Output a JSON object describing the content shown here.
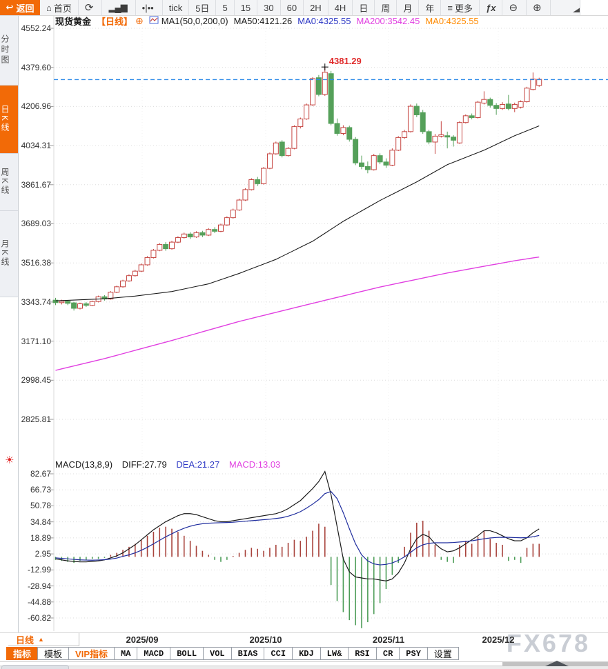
{
  "toolbar": {
    "back_label": "返回",
    "buttons": [
      {
        "id": "home",
        "label": "首页",
        "icon": "home-icon"
      },
      {
        "id": "refresh",
        "label": "",
        "icon": "refresh-icon"
      },
      {
        "id": "chart-type",
        "label": "",
        "icon": "bar-chart-icon"
      },
      {
        "id": "volume",
        "label": "",
        "icon": "volume-sliders-icon"
      },
      {
        "id": "tick",
        "label": "tick"
      },
      {
        "id": "5d",
        "label": "5日"
      },
      {
        "id": "5min",
        "label": "5"
      },
      {
        "id": "15min",
        "label": "15"
      },
      {
        "id": "30min",
        "label": "30"
      },
      {
        "id": "60min",
        "label": "60"
      },
      {
        "id": "2h",
        "label": "2H"
      },
      {
        "id": "4h",
        "label": "4H"
      },
      {
        "id": "day",
        "label": "日"
      },
      {
        "id": "week",
        "label": "周"
      },
      {
        "id": "month",
        "label": "月"
      },
      {
        "id": "year",
        "label": "年"
      },
      {
        "id": "more",
        "label": "更多",
        "icon": "menu-icon"
      },
      {
        "id": "fx",
        "label": "ƒx"
      },
      {
        "id": "zoom-out",
        "label": "",
        "icon": "zoom-out-icon"
      },
      {
        "id": "zoom-in",
        "label": "",
        "icon": "zoom-in-icon"
      },
      {
        "id": "draw",
        "label": "",
        "icon": "draw-tool-icon"
      }
    ]
  },
  "sidebar": {
    "items": [
      {
        "label": "分时图",
        "active": false
      },
      {
        "label": "日K线",
        "active": true
      },
      {
        "label": "周K线",
        "active": false
      },
      {
        "label": "月K线",
        "active": false
      }
    ]
  },
  "chart_header": {
    "symbol": "现货黄金",
    "period": "【日线】",
    "add_icon": "⊕",
    "ma_settings": "MA1(50,0,200,0)",
    "ma50": "MA50:4121.26",
    "ma0_blue": "MA0:4325.55",
    "ma200": "MA200:3542.45",
    "ma0_orange": "MA0:4325.55"
  },
  "macd_header": {
    "title": "MACD(13,8,9)",
    "diff": "DIFF:27.79",
    "dea": "DEA:21.27",
    "macd": "MACD:13.03"
  },
  "annotation": {
    "peak_label": "4381.29"
  },
  "x_axis": {
    "period_label": "日线",
    "arrow": "▲",
    "labels": [
      "2025/09",
      "2025/10",
      "2025/11",
      "2025/12"
    ]
  },
  "footer_tabs": [
    {
      "label": "指标",
      "active": true
    },
    {
      "label": "模板"
    },
    {
      "label": "VIP指标",
      "vip": true
    },
    {
      "label": "MA",
      "mono": true
    },
    {
      "label": "MACD",
      "mono": true
    },
    {
      "label": "BOLL",
      "mono": true
    },
    {
      "label": "VOL",
      "mono": true
    },
    {
      "label": "BIAS",
      "mono": true
    },
    {
      "label": "CCI",
      "mono": true
    },
    {
      "label": "KDJ",
      "mono": true
    },
    {
      "label": "LW&",
      "mono": true
    },
    {
      "label": "RSI",
      "mono": true
    },
    {
      "label": "CR",
      "mono": true
    },
    {
      "label": "PSY",
      "mono": true
    },
    {
      "label": "设置"
    }
  ],
  "watermark": "FX678",
  "colors": {
    "accent_orange": "#f26a07",
    "up_red": "#c5433f",
    "down_green": "#55a05a",
    "macd_up": "#a8433c",
    "macd_down": "#4d9d58",
    "line_black": "#1a1a1a",
    "line_blue": "#1f2d9e",
    "line_magenta": "#e13fe1",
    "dashed_blue": "#2f8ce8",
    "annotation_red": "#e02a2a"
  },
  "chart_data": {
    "type": "candlestick",
    "symbol": "现货黄金",
    "period": "日线",
    "title": "现货黄金【日线】",
    "price_axis_ticks": [
      4552.24,
      4379.6,
      4206.96,
      4034.31,
      3861.67,
      3689.03,
      3516.38,
      3343.74,
      3171.1,
      2998.45,
      2825.81
    ],
    "macd_axis_ticks": [
      82.67,
      66.73,
      50.78,
      34.84,
      18.89,
      2.95,
      -12.99,
      -28.94,
      -44.88,
      -60.82
    ],
    "x_labels": [
      "2025/09",
      "2025/10",
      "2025/11",
      "2025/12"
    ],
    "current_price": 4325.55,
    "peak_price": 4381.29,
    "peak_candle_index": 44,
    "ma50_last": 4121.26,
    "ma200_last": 3542.45,
    "candles_ohlc": [
      [
        3352,
        3362,
        3330,
        3341
      ],
      [
        3341,
        3354,
        3333,
        3347
      ],
      [
        3347,
        3352,
        3330,
        3338
      ],
      [
        3340,
        3344,
        3306,
        3316
      ],
      [
        3316,
        3341,
        3311,
        3336
      ],
      [
        3336,
        3344,
        3322,
        3329
      ],
      [
        3329,
        3350,
        3326,
        3346
      ],
      [
        3346,
        3372,
        3342,
        3367
      ],
      [
        3367,
        3374,
        3350,
        3357
      ],
      [
        3357,
        3392,
        3354,
        3387
      ],
      [
        3387,
        3416,
        3383,
        3411
      ],
      [
        3411,
        3442,
        3407,
        3437
      ],
      [
        3437,
        3466,
        3433,
        3460
      ],
      [
        3460,
        3486,
        3456,
        3480
      ],
      [
        3480,
        3514,
        3476,
        3508
      ],
      [
        3508,
        3546,
        3504,
        3540
      ],
      [
        3540,
        3578,
        3536,
        3572
      ],
      [
        3572,
        3604,
        3568,
        3598
      ],
      [
        3598,
        3608,
        3570,
        3579
      ],
      [
        3579,
        3614,
        3575,
        3608
      ],
      [
        3608,
        3634,
        3604,
        3628
      ],
      [
        3628,
        3650,
        3624,
        3644
      ],
      [
        3644,
        3652,
        3622,
        3631
      ],
      [
        3631,
        3656,
        3627,
        3650
      ],
      [
        3650,
        3658,
        3630,
        3639
      ],
      [
        3639,
        3670,
        3635,
        3664
      ],
      [
        3664,
        3674,
        3648,
        3656
      ],
      [
        3656,
        3690,
        3652,
        3684
      ],
      [
        3684,
        3722,
        3680,
        3716
      ],
      [
        3716,
        3756,
        3712,
        3750
      ],
      [
        3750,
        3800,
        3746,
        3794
      ],
      [
        3794,
        3846,
        3790,
        3840
      ],
      [
        3840,
        3890,
        3836,
        3884
      ],
      [
        3884,
        3896,
        3856,
        3866
      ],
      [
        3866,
        3940,
        3862,
        3934
      ],
      [
        3934,
        4004,
        3930,
        3998
      ],
      [
        3998,
        4052,
        3994,
        4046
      ],
      [
        4050,
        4058,
        3982,
        3990
      ],
      [
        3990,
        4028,
        3986,
        4022
      ],
      [
        4022,
        4124,
        4018,
        4118
      ],
      [
        4118,
        4158,
        4110,
        4152
      ],
      [
        4152,
        4220,
        4148,
        4214
      ],
      [
        4214,
        4336,
        4210,
        4330
      ],
      [
        4334,
        4346,
        4252,
        4260
      ],
      [
        4260,
        4381.29,
        4254,
        4358
      ],
      [
        4352,
        4364,
        4124,
        4132
      ],
      [
        4132,
        4154,
        4078,
        4088
      ],
      [
        4088,
        4124,
        4080,
        4114
      ],
      [
        4114,
        4122,
        4052,
        4062
      ],
      [
        4062,
        4072,
        3948,
        3958
      ],
      [
        3958,
        3990,
        3930,
        3942
      ],
      [
        3942,
        3964,
        3912,
        3928
      ],
      [
        3928,
        3998,
        3924,
        3990
      ],
      [
        3990,
        4000,
        3952,
        3962
      ],
      [
        3962,
        3978,
        3936,
        3948
      ],
      [
        3948,
        4022,
        3944,
        4014
      ],
      [
        4014,
        4076,
        4010,
        4070
      ],
      [
        4070,
        4104,
        4064,
        4096
      ],
      [
        4096,
        4216,
        4092,
        4208
      ],
      [
        4208,
        4220,
        4160,
        4170
      ],
      [
        4180,
        4192,
        4086,
        4096
      ],
      [
        4096,
        4104,
        4040,
        4050
      ],
      [
        4050,
        4086,
        3998,
        4076
      ],
      [
        4076,
        4142,
        4070,
        4082
      ],
      [
        4078,
        4096,
        4022,
        4072
      ],
      [
        4072,
        4080,
        4030,
        4058
      ],
      [
        4046,
        4142,
        4042,
        4136
      ],
      [
        4136,
        4172,
        4132,
        4166
      ],
      [
        4166,
        4176,
        4150,
        4158
      ],
      [
        4158,
        4232,
        4154,
        4226
      ],
      [
        4222,
        4274,
        4216,
        4238
      ],
      [
        4238,
        4246,
        4202,
        4212
      ],
      [
        4212,
        4222,
        4170,
        4198
      ],
      [
        4198,
        4226,
        4192,
        4216
      ],
      [
        4218,
        4258,
        4190,
        4198
      ],
      [
        4198,
        4224,
        4182,
        4216
      ],
      [
        4204,
        4234,
        4198,
        4228
      ],
      [
        4228,
        4294,
        4224,
        4288
      ],
      [
        4282,
        4357,
        4278,
        4328
      ],
      [
        4300,
        4334,
        4294,
        4327
      ]
    ],
    "ma50_points": [
      [
        0,
        3349
      ],
      [
        8,
        3358
      ],
      [
        13,
        3370
      ],
      [
        19,
        3390
      ],
      [
        25,
        3424
      ],
      [
        30,
        3470
      ],
      [
        36,
        3532
      ],
      [
        42,
        3612
      ],
      [
        47,
        3700
      ],
      [
        53,
        3792
      ],
      [
        59,
        3874
      ],
      [
        64,
        3950
      ],
      [
        70,
        4014
      ],
      [
        75,
        4078
      ],
      [
        79,
        4121.26
      ]
    ],
    "ma200_points": [
      [
        0,
        3042
      ],
      [
        8,
        3094
      ],
      [
        19,
        3174
      ],
      [
        30,
        3258
      ],
      [
        42,
        3338
      ],
      [
        53,
        3410
      ],
      [
        64,
        3472
      ],
      [
        75,
        3526
      ],
      [
        79,
        3542.45
      ]
    ],
    "macd": {
      "params": "13,8,9",
      "diff_last": 27.79,
      "dea_last": 21.27,
      "macd_last": 13.03,
      "diff": [
        -2,
        -3,
        -4,
        -4.5,
        -5,
        -5,
        -4.5,
        -4,
        -3,
        -1,
        1,
        4,
        8,
        12,
        17,
        22,
        27,
        31,
        35,
        38,
        41,
        43,
        43,
        42,
        40,
        38,
        36,
        35,
        35,
        36,
        37,
        38,
        39,
        40,
        41,
        42,
        43,
        45,
        48,
        52,
        56,
        62,
        68,
        75,
        85,
        62,
        30,
        -2,
        -15,
        -20,
        -21,
        -22,
        -22,
        -23,
        -24,
        -22,
        -16,
        -6,
        8,
        18,
        22.5,
        20,
        13,
        8,
        5,
        6,
        9,
        13,
        17,
        21,
        26,
        26,
        24,
        21,
        18,
        16,
        16,
        19,
        24,
        27.8
      ],
      "dea": [
        -1,
        -1.5,
        -2,
        -2.5,
        -3,
        -3.2,
        -3.3,
        -3.1,
        -2.8,
        -2.2,
        -1.2,
        0.5,
        2,
        4,
        6.5,
        9.5,
        13,
        16.5,
        20,
        23,
        26,
        28.5,
        30.5,
        32,
        33,
        33.5,
        33.8,
        34,
        34.2,
        34.5,
        35,
        35.5,
        36,
        36.5,
        37,
        37.5,
        38.2,
        39,
        40.5,
        42.5,
        45,
        48.5,
        52.5,
        57,
        63,
        65,
        58,
        44,
        28,
        13,
        2,
        -4,
        -7,
        -8,
        -7.5,
        -6,
        -3.5,
        0,
        4.5,
        9,
        12,
        13.5,
        14,
        14,
        14,
        14.3,
        14.8,
        15.3,
        16,
        17,
        18,
        18.8,
        19.3,
        19.5,
        19.4,
        19.2,
        19,
        19.2,
        20,
        21.3
      ],
      "hist": [
        -3,
        -4,
        -5,
        -6,
        -4,
        -3,
        -2,
        -2,
        -1,
        2,
        4,
        7,
        10,
        13,
        17,
        21,
        25,
        29,
        30,
        28,
        25,
        21,
        16,
        11,
        6,
        2,
        -3,
        -5,
        -3,
        1,
        4,
        7,
        9,
        8,
        6,
        9,
        12,
        10,
        14,
        17,
        16,
        20,
        26,
        33,
        30,
        -28,
        -44,
        -55,
        -63,
        -68,
        -71,
        -65,
        -57,
        -46,
        -32,
        -18,
        -6,
        10,
        24,
        34,
        36,
        26,
        12,
        -3,
        -5,
        -6,
        12,
        16,
        13,
        20,
        26,
        18,
        14,
        12,
        -4,
        -3,
        -6,
        9,
        13,
        13
      ]
    }
  }
}
